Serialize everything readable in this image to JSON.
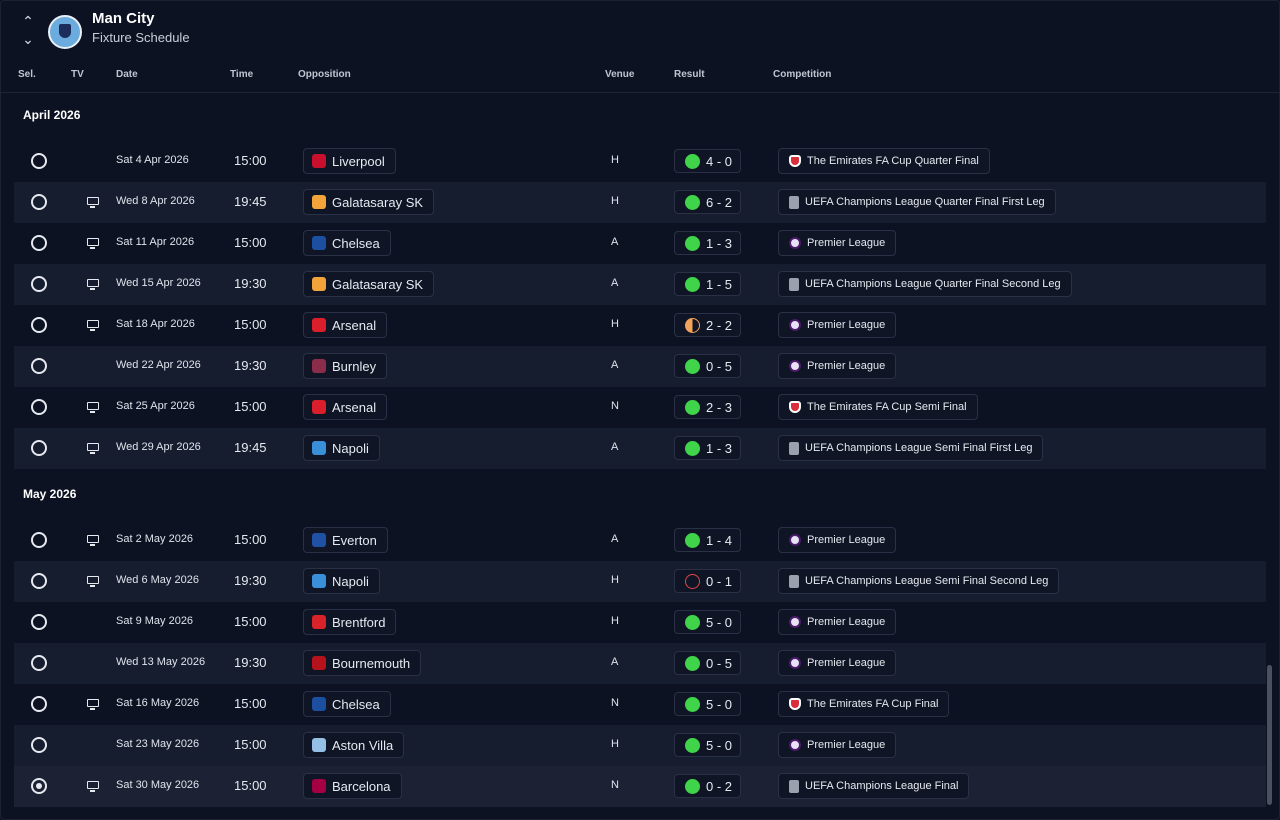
{
  "header": {
    "club": "Man City",
    "subtitle": "Fixture Schedule"
  },
  "columns": {
    "sel": "Sel.",
    "tv": "TV",
    "date": "Date",
    "time": "Time",
    "opposition": "Opposition",
    "venue": "Venue",
    "result": "Result",
    "competition": "Competition"
  },
  "months": [
    {
      "label": "April 2026",
      "fixtures": [
        {
          "tv": false,
          "date": "Sat 4 Apr 2026",
          "time": "15:00",
          "opponent": "Liverpool",
          "badge": "#c8102e",
          "venue": "H",
          "result": "4 - 0",
          "outcome": "win",
          "competition": "The Emirates FA Cup Quarter Final",
          "comp_icon": "fa",
          "selected": false
        },
        {
          "tv": true,
          "date": "Wed 8 Apr 2026",
          "time": "19:45",
          "opponent": "Galatasaray SK",
          "badge": "#f2a33a",
          "venue": "H",
          "result": "6 - 2",
          "outcome": "win",
          "competition": "UEFA Champions League Quarter Final First Leg",
          "comp_icon": "ucl",
          "selected": false
        },
        {
          "tv": true,
          "date": "Sat 11 Apr 2026",
          "time": "15:00",
          "opponent": "Chelsea",
          "badge": "#1d4fa0",
          "venue": "A",
          "result": "1 - 3",
          "outcome": "win",
          "competition": "Premier League",
          "comp_icon": "pl",
          "selected": false
        },
        {
          "tv": true,
          "date": "Wed 15 Apr 2026",
          "time": "19:30",
          "opponent": "Galatasaray SK",
          "badge": "#f2a33a",
          "venue": "A",
          "result": "1 - 5",
          "outcome": "win",
          "competition": "UEFA Champions League Quarter Final Second Leg",
          "comp_icon": "ucl",
          "selected": false
        },
        {
          "tv": true,
          "date": "Sat 18 Apr 2026",
          "time": "15:00",
          "opponent": "Arsenal",
          "badge": "#db1e2b",
          "venue": "H",
          "result": "2 - 2",
          "outcome": "draw",
          "competition": "Premier League",
          "comp_icon": "pl",
          "selected": false
        },
        {
          "tv": false,
          "date": "Wed 22 Apr 2026",
          "time": "19:30",
          "opponent": "Burnley",
          "badge": "#8b2c4a",
          "venue": "A",
          "result": "0 - 5",
          "outcome": "win",
          "competition": "Premier League",
          "comp_icon": "pl",
          "selected": false
        },
        {
          "tv": true,
          "date": "Sat 25 Apr 2026",
          "time": "15:00",
          "opponent": "Arsenal",
          "badge": "#db1e2b",
          "venue": "N",
          "result": "2 - 3",
          "outcome": "win",
          "competition": "The Emirates FA Cup Semi Final",
          "comp_icon": "fa",
          "selected": false
        },
        {
          "tv": true,
          "date": "Wed 29 Apr 2026",
          "time": "19:45",
          "opponent": "Napoli",
          "badge": "#3a8fd9",
          "venue": "A",
          "result": "1 - 3",
          "outcome": "win",
          "competition": "UEFA Champions League Semi Final First Leg",
          "comp_icon": "ucl",
          "selected": false
        }
      ]
    },
    {
      "label": "May 2026",
      "fixtures": [
        {
          "tv": true,
          "date": "Sat 2 May 2026",
          "time": "15:00",
          "opponent": "Everton",
          "badge": "#2151a5",
          "venue": "A",
          "result": "1 - 4",
          "outcome": "win",
          "competition": "Premier League",
          "comp_icon": "pl",
          "selected": false
        },
        {
          "tv": true,
          "date": "Wed 6 May 2026",
          "time": "19:30",
          "opponent": "Napoli",
          "badge": "#3a8fd9",
          "venue": "H",
          "result": "0 - 1",
          "outcome": "loss",
          "competition": "UEFA Champions League Semi Final Second Leg",
          "comp_icon": "ucl",
          "selected": false
        },
        {
          "tv": false,
          "date": "Sat 9 May 2026",
          "time": "15:00",
          "opponent": "Brentford",
          "badge": "#d8232a",
          "venue": "H",
          "result": "5 - 0",
          "outcome": "win",
          "competition": "Premier League",
          "comp_icon": "pl",
          "selected": false
        },
        {
          "tv": false,
          "date": "Wed 13 May 2026",
          "time": "19:30",
          "opponent": "Bournemouth",
          "badge": "#b5121b",
          "venue": "A",
          "result": "0 - 5",
          "outcome": "win",
          "competition": "Premier League",
          "comp_icon": "pl",
          "selected": false
        },
        {
          "tv": true,
          "date": "Sat 16 May 2026",
          "time": "15:00",
          "opponent": "Chelsea",
          "badge": "#1d4fa0",
          "venue": "N",
          "result": "5 - 0",
          "outcome": "win",
          "competition": "The Emirates FA Cup Final",
          "comp_icon": "fa",
          "selected": false
        },
        {
          "tv": false,
          "date": "Sat 23 May 2026",
          "time": "15:00",
          "opponent": "Aston Villa",
          "badge": "#95bfe5",
          "venue": "H",
          "result": "5 - 0",
          "outcome": "win",
          "competition": "Premier League",
          "comp_icon": "pl",
          "selected": false
        },
        {
          "tv": true,
          "date": "Sat 30 May 2026",
          "time": "15:00",
          "opponent": "Barcelona",
          "badge": "#a50044",
          "venue": "N",
          "result": "0 - 2",
          "outcome": "win",
          "competition": "UEFA Champions League Final",
          "comp_icon": "ucl",
          "selected": true
        }
      ]
    }
  ]
}
